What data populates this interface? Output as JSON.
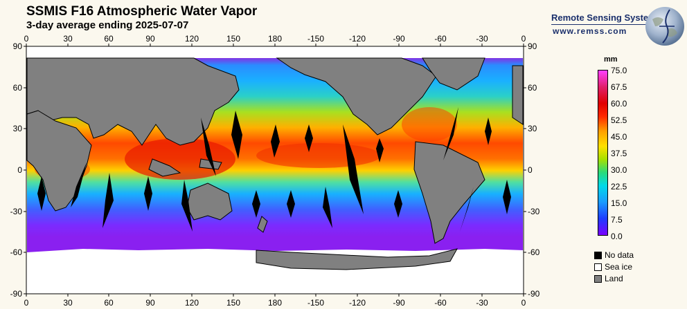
{
  "header": {
    "title": "SSMIS F16 Atmospheric Water Vapor",
    "subtitle": "3-day average ending 2025-07-07"
  },
  "brand": {
    "name": "Remote Sensing Systems",
    "url": "www.remss.com",
    "logo_icon": "globe-icon"
  },
  "axes": {
    "lon_labels": [
      "0",
      "30",
      "60",
      "90",
      "120",
      "150",
      "180",
      "-150",
      "-120",
      "-90",
      "-60",
      "-30",
      "0"
    ],
    "lat_labels": [
      "90",
      "60",
      "30",
      "0",
      "-30",
      "-60",
      "-90"
    ]
  },
  "colorbar": {
    "unit": "mm",
    "labels": [
      "75.0",
      "67.5",
      "60.0",
      "52.5",
      "45.0",
      "37.5",
      "30.0",
      "22.5",
      "15.0",
      "7.5",
      "0.0"
    ]
  },
  "legend": [
    {
      "label": "No data",
      "color": "#000000"
    },
    {
      "label": "Sea ice",
      "color": "#ffffff"
    },
    {
      "label": "Land",
      "color": "#808080"
    }
  ]
}
